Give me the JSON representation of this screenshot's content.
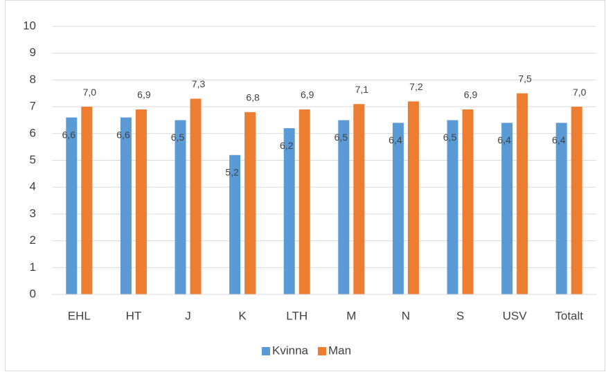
{
  "chart_data": {
    "type": "bar",
    "categories": [
      "EHL",
      "HT",
      "J",
      "K",
      "LTH",
      "M",
      "N",
      "S",
      "USV",
      "Totalt"
    ],
    "series": [
      {
        "name": "Kvinna",
        "color": "#5b9bd5",
        "values": [
          6.6,
          6.6,
          6.5,
          5.2,
          6.2,
          6.5,
          6.4,
          6.5,
          6.4,
          6.4
        ],
        "value_labels": [
          "6,6",
          "6,6",
          "6,5",
          "5,2",
          "6,2",
          "6,5",
          "6,4",
          "6,5",
          "6,4",
          "6,4"
        ]
      },
      {
        "name": "Man",
        "color": "#ed7d31",
        "values": [
          7.0,
          6.9,
          7.3,
          6.8,
          6.9,
          7.1,
          7.2,
          6.9,
          7.5,
          7.0
        ],
        "value_labels": [
          "7,0",
          "6,9",
          "7,3",
          "6,8",
          "6,9",
          "7,1",
          "7,2",
          "6,9",
          "7,5",
          "7,0"
        ]
      }
    ],
    "ylim": [
      0,
      10
    ],
    "yticks": [
      0,
      1,
      2,
      3,
      4,
      5,
      6,
      7,
      8,
      9,
      10
    ],
    "grid": true,
    "legend": "bottom"
  }
}
